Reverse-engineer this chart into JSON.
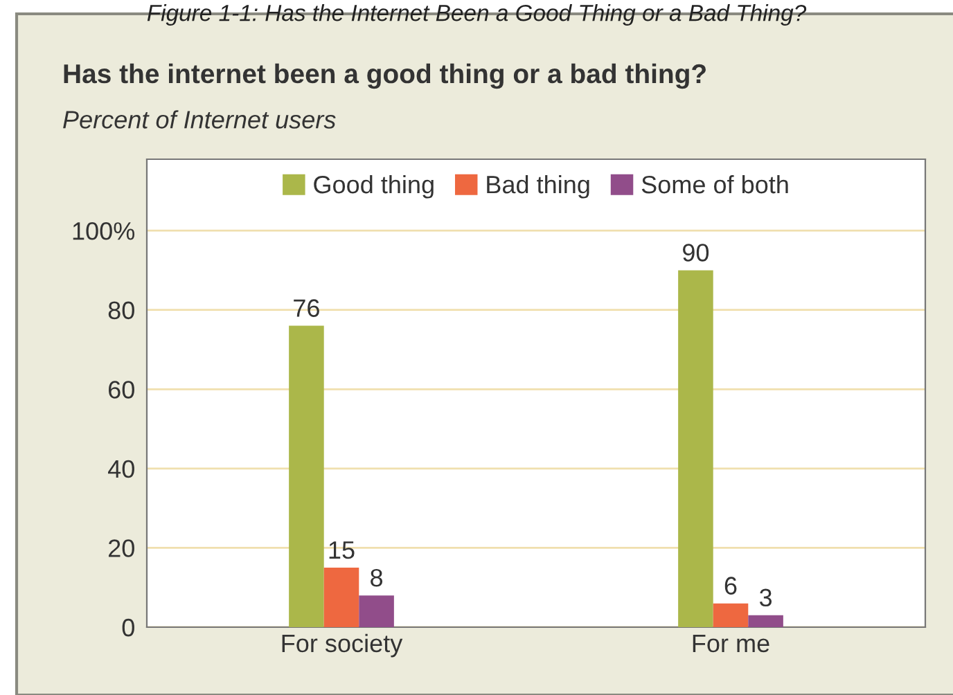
{
  "chart_data": {
    "type": "bar",
    "title": "Has the internet been a good thing or a bad thing?",
    "subtitle": "Percent of Internet users",
    "annotations": [
      "Figure 1-1: Has the Internet Been a Good Thing or a Bad Thing?"
    ],
    "categories": [
      "For society",
      "For me"
    ],
    "series": [
      {
        "name": "Good thing",
        "color": "#abb74a",
        "values": [
          76,
          90
        ]
      },
      {
        "name": "Bad thing",
        "color": "#ee6840",
        "values": [
          15,
          6
        ]
      },
      {
        "name": "Some of both",
        "color": "#914d8a",
        "values": [
          8,
          3
        ]
      }
    ],
    "ylim": [
      0,
      118
    ],
    "yticks": [
      0,
      20,
      40,
      60,
      80,
      {
        "value": 100,
        "label": "100%"
      }
    ],
    "grid": "y",
    "legend": "top",
    "data_labels": true
  }
}
